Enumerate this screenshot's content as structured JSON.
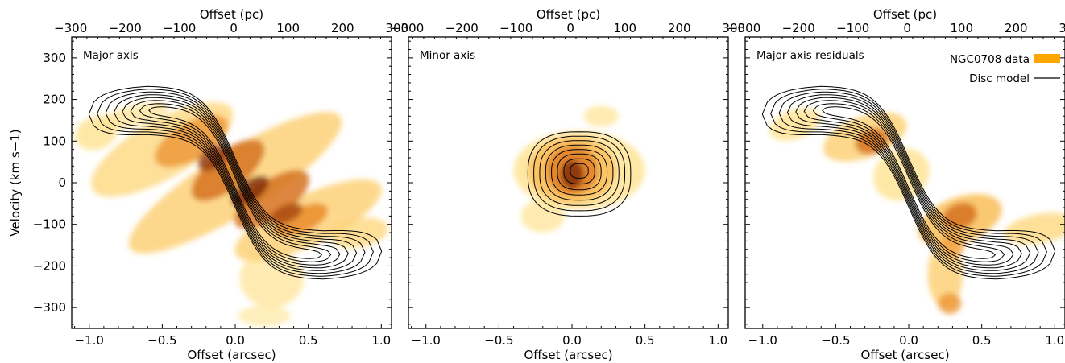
{
  "chart_data": {
    "type": "pv-diagram",
    "shared_axes": {
      "xlabel_bottom": "Offset (arcsec)",
      "xlabel_top": "Offset (pc)",
      "ylabel": "Velocity (km s−1)",
      "xlim_arcsec": [
        -1.12,
        1.07
      ],
      "xlim_pc": [
        -298,
        290
      ],
      "ylim": [
        -350,
        350
      ],
      "x_ticks_bottom": [
        -1.0,
        -0.5,
        0.0,
        0.5,
        1.0
      ],
      "x_tick_labels_bottom": [
        "−1.0",
        "−0.5",
        "0.0",
        "0.5",
        "1.0"
      ],
      "x_ticks_top": [
        -300,
        -200,
        -100,
        0,
        100,
        200,
        300
      ],
      "x_tick_labels_top": [
        "−300",
        "−200",
        "−100",
        "0",
        "100",
        "200",
        "300"
      ],
      "y_ticks": [
        -300,
        -200,
        -100,
        0,
        100,
        200,
        300
      ],
      "y_tick_labels": [
        "−300",
        "−200",
        "−100",
        "0",
        "100",
        "200",
        "300"
      ]
    },
    "panels": [
      {
        "label": "Major axis",
        "data_color": "#f5a31a",
        "contour_color": "#000000",
        "data_blobs": [
          {
            "x": -0.95,
            "y": 120,
            "rx": 0.15,
            "ry": 40,
            "rot": -22,
            "level": 0.25
          },
          {
            "x": -0.5,
            "y": 80,
            "rx": 0.55,
            "ry": 70,
            "rot": -30,
            "level": 0.3
          },
          {
            "x": 0.0,
            "y": 0,
            "rx": 0.85,
            "ry": 75,
            "rot": -32,
            "level": 0.35
          },
          {
            "x": 0.5,
            "y": -90,
            "rx": 0.55,
            "ry": 60,
            "rot": -25,
            "level": 0.35
          },
          {
            "x": 0.85,
            "y": -120,
            "rx": 0.2,
            "ry": 35,
            "rot": -10,
            "level": 0.3
          },
          {
            "x": 0.25,
            "y": -230,
            "rx": 0.22,
            "ry": 70,
            "rot": 0,
            "level": 0.2
          },
          {
            "x": 0.2,
            "y": -320,
            "rx": 0.18,
            "ry": 25,
            "rot": 0,
            "level": 0.15
          },
          {
            "x": -0.7,
            "y": 160,
            "rx": 0.25,
            "ry": 25,
            "rot": -15,
            "level": 0.2
          },
          {
            "x": -0.3,
            "y": 100,
            "rx": 0.28,
            "ry": 45,
            "rot": -30,
            "level": 0.6
          },
          {
            "x": -0.05,
            "y": 30,
            "rx": 0.3,
            "ry": 45,
            "rot": -38,
            "level": 0.75
          },
          {
            "x": 0.25,
            "y": -40,
            "rx": 0.3,
            "ry": 45,
            "rot": -35,
            "level": 0.75
          },
          {
            "x": 0.45,
            "y": -90,
            "rx": 0.2,
            "ry": 30,
            "rot": -25,
            "level": 0.65
          },
          {
            "x": -0.15,
            "y": 60,
            "rx": 0.12,
            "ry": 25,
            "rot": -35,
            "level": 0.95
          },
          {
            "x": 0.1,
            "y": -20,
            "rx": 0.15,
            "ry": 25,
            "rot": -35,
            "level": 1.0
          },
          {
            "x": 0.35,
            "y": -75,
            "rx": 0.12,
            "ry": 20,
            "rot": -25,
            "level": 0.9
          }
        ],
        "contours": {
          "type": "disc",
          "levels": [
            0.13,
            0.24,
            0.35,
            0.46,
            0.57,
            0.68,
            0.8,
            0.92
          ]
        }
      },
      {
        "label": "Minor axis",
        "data_color": "#f5a31a",
        "contour_color": "#000000",
        "data_blobs": [
          {
            "x": 0.05,
            "y": 30,
            "rx": 0.45,
            "ry": 95,
            "rot": 0,
            "level": 0.25
          },
          {
            "x": 0.2,
            "y": 160,
            "rx": 0.12,
            "ry": 25,
            "rot": 0,
            "level": 0.2
          },
          {
            "x": -0.2,
            "y": -80,
            "rx": 0.15,
            "ry": 40,
            "rot": 0,
            "level": 0.2
          },
          {
            "x": 0.0,
            "y": 30,
            "rx": 0.3,
            "ry": 80,
            "rot": 0,
            "level": 0.45
          },
          {
            "x": 0.0,
            "y": 30,
            "rx": 0.18,
            "ry": 60,
            "rot": 0,
            "level": 0.7
          },
          {
            "x": 0.0,
            "y": 20,
            "rx": 0.08,
            "ry": 35,
            "rot": 0,
            "level": 1.0
          }
        ],
        "contours": {
          "type": "ellipse",
          "cx": 0.05,
          "cy": 20,
          "rx": 0.4,
          "ry": 115,
          "levels": [
            0.13,
            0.24,
            0.35,
            0.46,
            0.57,
            0.68,
            0.8,
            0.92
          ]
        }
      },
      {
        "label": "Major axis residuals",
        "data_color": "#f5a31a",
        "contour_color": "#000000",
        "data_blobs": [
          {
            "x": -0.78,
            "y": 140,
            "rx": 0.18,
            "ry": 35,
            "rot": -20,
            "level": 0.25
          },
          {
            "x": -0.3,
            "y": 110,
            "rx": 0.3,
            "ry": 50,
            "rot": -20,
            "level": 0.35
          },
          {
            "x": -0.05,
            "y": 20,
            "rx": 0.2,
            "ry": 60,
            "rot": -30,
            "level": 0.25
          },
          {
            "x": 0.35,
            "y": -90,
            "rx": 0.3,
            "ry": 55,
            "rot": -20,
            "level": 0.45
          },
          {
            "x": 0.9,
            "y": -110,
            "rx": 0.25,
            "ry": 35,
            "rot": -10,
            "level": 0.3
          },
          {
            "x": 0.25,
            "y": -220,
            "rx": 0.12,
            "ry": 80,
            "rot": 0,
            "level": 0.35
          },
          {
            "x": 0.28,
            "y": -290,
            "rx": 0.08,
            "ry": 25,
            "rot": 0,
            "level": 0.6
          },
          {
            "x": -0.25,
            "y": 100,
            "rx": 0.12,
            "ry": 30,
            "rot": -20,
            "level": 0.75
          },
          {
            "x": 0.35,
            "y": -80,
            "rx": 0.12,
            "ry": 30,
            "rot": -20,
            "level": 0.75
          },
          {
            "x": 0.3,
            "y": -150,
            "rx": 0.08,
            "ry": 30,
            "rot": 0,
            "level": 0.55
          }
        ],
        "contours": {
          "type": "disc",
          "levels": [
            0.13,
            0.24,
            0.35,
            0.46,
            0.57,
            0.68,
            0.8,
            0.92
          ]
        }
      }
    ],
    "legend": {
      "placement": "top-right",
      "entries": [
        {
          "label": "NGC0708 data",
          "kind": "patch",
          "color": "#ffa500"
        },
        {
          "label": "Disc model",
          "kind": "line",
          "color": "#000000"
        }
      ]
    }
  }
}
